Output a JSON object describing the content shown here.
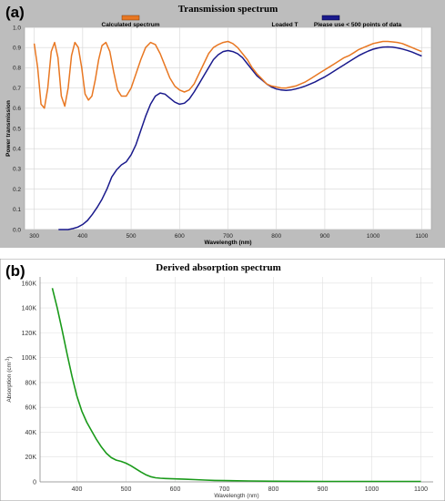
{
  "chart_data": [
    {
      "panel_label": "(a)",
      "type": "line",
      "title": "Transmission spectrum",
      "xlabel": "Wavelength (nm)",
      "ylabel": "Power transmission",
      "xlim": [
        280,
        1120
      ],
      "ylim": [
        0,
        1.0
      ],
      "xticks": [
        300,
        400,
        500,
        600,
        700,
        800,
        900,
        1000,
        1100
      ],
      "yticks": [
        0.0,
        0.1,
        0.2,
        0.3,
        0.4,
        0.5,
        0.6,
        0.7,
        0.8,
        0.9,
        1.0
      ],
      "ytick_labels": [
        "0.0",
        "0.1",
        "0.2",
        "0.3",
        "0.4",
        "0.5",
        "0.6",
        "0.7",
        "0.8",
        "0.9",
        "1.0"
      ],
      "grid": true,
      "legend_placement": "top",
      "series": [
        {
          "name": "Calculated spectrum",
          "color": "#E87722",
          "x": [
            300,
            307,
            314,
            321,
            328,
            335,
            342,
            349,
            356,
            363,
            370,
            377,
            384,
            391,
            398,
            405,
            412,
            419,
            426,
            433,
            440,
            448,
            456,
            464,
            472,
            480,
            490,
            500,
            510,
            520,
            530,
            540,
            550,
            560,
            570,
            580,
            590,
            600,
            610,
            620,
            630,
            640,
            650,
            660,
            670,
            680,
            690,
            700,
            710,
            720,
            730,
            740,
            750,
            760,
            770,
            780,
            790,
            800,
            810,
            820,
            830,
            840,
            850,
            860,
            870,
            880,
            890,
            900,
            910,
            920,
            930,
            940,
            950,
            960,
            970,
            980,
            990,
            1000,
            1010,
            1020,
            1030,
            1040,
            1050,
            1060,
            1070,
            1080,
            1090,
            1100
          ],
          "y": [
            0.92,
            0.8,
            0.62,
            0.6,
            0.7,
            0.88,
            0.925,
            0.85,
            0.66,
            0.61,
            0.7,
            0.86,
            0.925,
            0.9,
            0.8,
            0.67,
            0.64,
            0.66,
            0.74,
            0.84,
            0.91,
            0.925,
            0.88,
            0.78,
            0.69,
            0.66,
            0.66,
            0.7,
            0.77,
            0.84,
            0.9,
            0.925,
            0.915,
            0.87,
            0.81,
            0.75,
            0.71,
            0.69,
            0.68,
            0.69,
            0.72,
            0.77,
            0.82,
            0.87,
            0.9,
            0.915,
            0.925,
            0.93,
            0.92,
            0.9,
            0.87,
            0.84,
            0.8,
            0.77,
            0.745,
            0.72,
            0.71,
            0.705,
            0.7,
            0.7,
            0.705,
            0.71,
            0.72,
            0.73,
            0.745,
            0.76,
            0.775,
            0.79,
            0.805,
            0.82,
            0.835,
            0.85,
            0.86,
            0.875,
            0.89,
            0.9,
            0.91,
            0.92,
            0.925,
            0.93,
            0.93,
            0.928,
            0.925,
            0.92,
            0.91,
            0.9,
            0.89,
            0.88
          ]
        },
        {
          "name": "Loaded T",
          "color": "#000000",
          "x": [],
          "y": []
        },
        {
          "name": "Please use < 500 points of data",
          "color": "#1A1A8C",
          "x": [
            350,
            360,
            370,
            380,
            390,
            400,
            410,
            420,
            430,
            440,
            450,
            460,
            470,
            480,
            490,
            500,
            510,
            520,
            530,
            540,
            550,
            560,
            570,
            580,
            590,
            600,
            610,
            620,
            630,
            640,
            650,
            660,
            670,
            680,
            690,
            700,
            710,
            720,
            730,
            740,
            750,
            760,
            770,
            780,
            790,
            800,
            810,
            820,
            830,
            840,
            850,
            860,
            870,
            880,
            890,
            900,
            910,
            920,
            930,
            940,
            950,
            960,
            970,
            980,
            990,
            1000,
            1010,
            1020,
            1030,
            1040,
            1050,
            1060,
            1070,
            1080,
            1090,
            1100
          ],
          "y": [
            0.0,
            0.0,
            0.0,
            0.005,
            0.012,
            0.025,
            0.045,
            0.075,
            0.11,
            0.15,
            0.2,
            0.26,
            0.295,
            0.32,
            0.335,
            0.37,
            0.42,
            0.49,
            0.56,
            0.62,
            0.66,
            0.675,
            0.67,
            0.65,
            0.63,
            0.62,
            0.625,
            0.645,
            0.68,
            0.72,
            0.76,
            0.8,
            0.84,
            0.865,
            0.88,
            0.885,
            0.88,
            0.87,
            0.85,
            0.82,
            0.79,
            0.76,
            0.74,
            0.72,
            0.705,
            0.695,
            0.69,
            0.688,
            0.69,
            0.695,
            0.702,
            0.71,
            0.72,
            0.73,
            0.743,
            0.755,
            0.77,
            0.785,
            0.8,
            0.815,
            0.83,
            0.845,
            0.86,
            0.872,
            0.883,
            0.892,
            0.898,
            0.902,
            0.903,
            0.902,
            0.898,
            0.893,
            0.886,
            0.878,
            0.868,
            0.858
          ]
        }
      ]
    },
    {
      "panel_label": "(b)",
      "type": "line",
      "title": "Derived absorption spectrum",
      "xlabel": "Wavelength (nm)",
      "ylabel": "Absorption (cm^-1)",
      "xlim": [
        325,
        1125
      ],
      "ylim": [
        0,
        165000
      ],
      "xticks": [
        400,
        500,
        600,
        700,
        800,
        900,
        1000,
        1100
      ],
      "yticks": [
        0,
        20000,
        40000,
        60000,
        80000,
        100000,
        120000,
        140000,
        160000
      ],
      "ytick_labels": [
        "0",
        "20K",
        "40K",
        "60K",
        "80K",
        "100K",
        "120K",
        "140K",
        "160K"
      ],
      "grid": true,
      "series": [
        {
          "color": "#1A9A1A",
          "x": [
            350,
            360,
            370,
            380,
            390,
            400,
            410,
            420,
            430,
            440,
            450,
            460,
            470,
            480,
            490,
            500,
            510,
            520,
            530,
            540,
            550,
            560,
            570,
            580,
            600,
            620,
            640,
            660,
            680,
            700,
            750,
            800,
            850,
            900,
            950,
            1000,
            1050,
            1100
          ],
          "y": [
            156000,
            140000,
            122000,
            103000,
            85000,
            69000,
            57000,
            48000,
            41000,
            34000,
            28000,
            23000,
            19500,
            17500,
            16500,
            15000,
            13000,
            10500,
            8000,
            5800,
            4200,
            3300,
            2900,
            2700,
            2400,
            2100,
            1800,
            1500,
            1200,
            1000,
            700,
            550,
            450,
            400,
            380,
            370,
            360,
            350
          ]
        }
      ]
    }
  ]
}
